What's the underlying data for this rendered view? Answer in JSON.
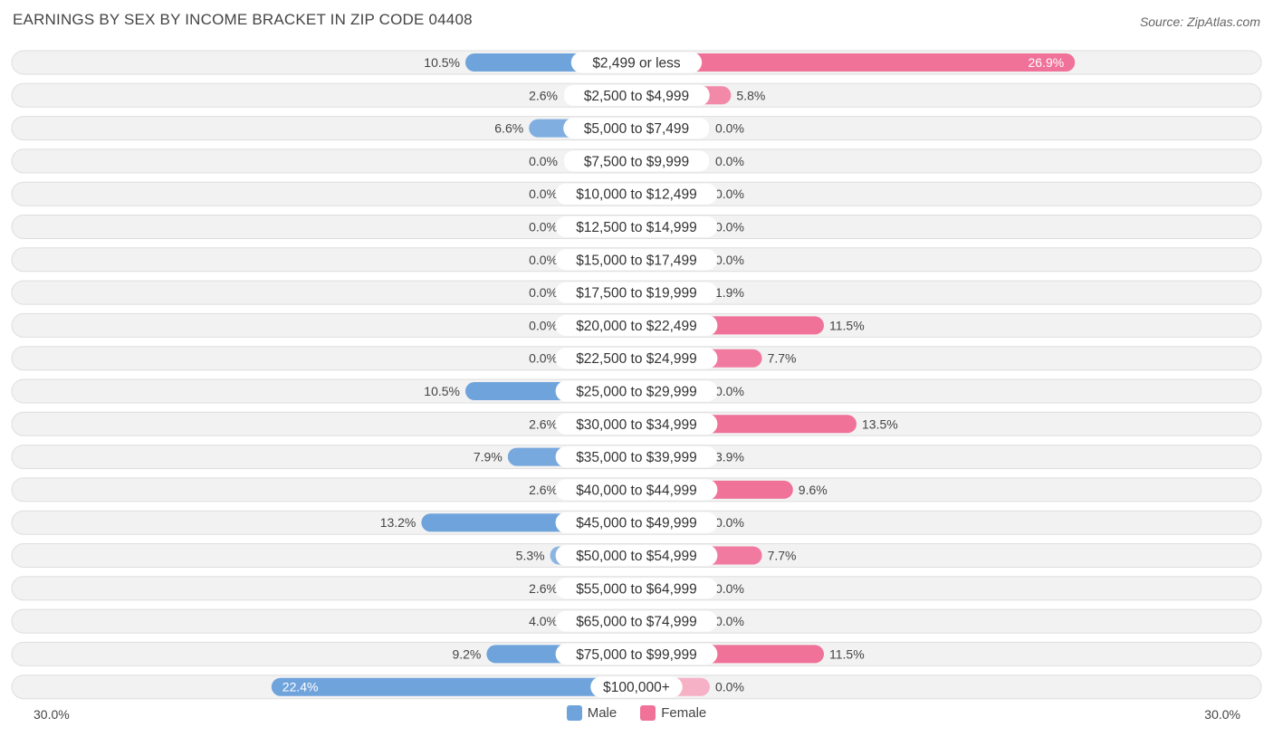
{
  "title": "EARNINGS BY SEX BY INCOME BRACKET IN ZIP CODE 04408",
  "source": "Source: ZipAtlas.com",
  "axis": {
    "left_label": "30.0%",
    "right_label": "30.0%"
  },
  "legend": {
    "male": {
      "label": "Male",
      "color": "#6fa3dc"
    },
    "female": {
      "label": "Female",
      "color": "#f07299"
    }
  },
  "chart_data": {
    "type": "bar",
    "orientation": "horizontal-diverging",
    "title": "EARNINGS BY SEX BY INCOME BRACKET IN ZIP CODE 04408",
    "xlim": [
      -30,
      30
    ],
    "categories": [
      "$2,499 or less",
      "$2,500 to $4,999",
      "$5,000 to $7,499",
      "$7,500 to $9,999",
      "$10,000 to $12,499",
      "$12,500 to $14,999",
      "$15,000 to $17,499",
      "$17,500 to $19,999",
      "$20,000 to $22,499",
      "$22,500 to $24,999",
      "$25,000 to $29,999",
      "$30,000 to $34,999",
      "$35,000 to $39,999",
      "$40,000 to $44,999",
      "$45,000 to $49,999",
      "$50,000 to $54,999",
      "$55,000 to $64,999",
      "$65,000 to $74,999",
      "$75,000 to $99,999",
      "$100,000+"
    ],
    "series": [
      {
        "name": "Male",
        "values": [
          10.5,
          2.6,
          6.6,
          0.0,
          0.0,
          0.0,
          0.0,
          0.0,
          0.0,
          0.0,
          10.5,
          2.6,
          7.9,
          2.6,
          13.2,
          5.3,
          2.6,
          4.0,
          9.2,
          22.4
        ],
        "labels": [
          "10.5%",
          "2.6%",
          "6.6%",
          "0.0%",
          "0.0%",
          "0.0%",
          "0.0%",
          "0.0%",
          "0.0%",
          "0.0%",
          "10.5%",
          "2.6%",
          "7.9%",
          "2.6%",
          "13.2%",
          "5.3%",
          "2.6%",
          "4.0%",
          "9.2%",
          "22.4%"
        ]
      },
      {
        "name": "Female",
        "values": [
          26.9,
          5.8,
          0.0,
          0.0,
          0.0,
          0.0,
          0.0,
          1.9,
          11.5,
          7.7,
          0.0,
          13.5,
          3.9,
          9.6,
          0.0,
          7.7,
          0.0,
          0.0,
          11.5,
          0.0
        ],
        "labels": [
          "26.9%",
          "5.8%",
          "0.0%",
          "0.0%",
          "0.0%",
          "0.0%",
          "0.0%",
          "1.9%",
          "11.5%",
          "7.7%",
          "0.0%",
          "13.5%",
          "3.9%",
          "9.6%",
          "0.0%",
          "7.7%",
          "0.0%",
          "0.0%",
          "11.5%",
          "0.0%"
        ]
      }
    ]
  }
}
